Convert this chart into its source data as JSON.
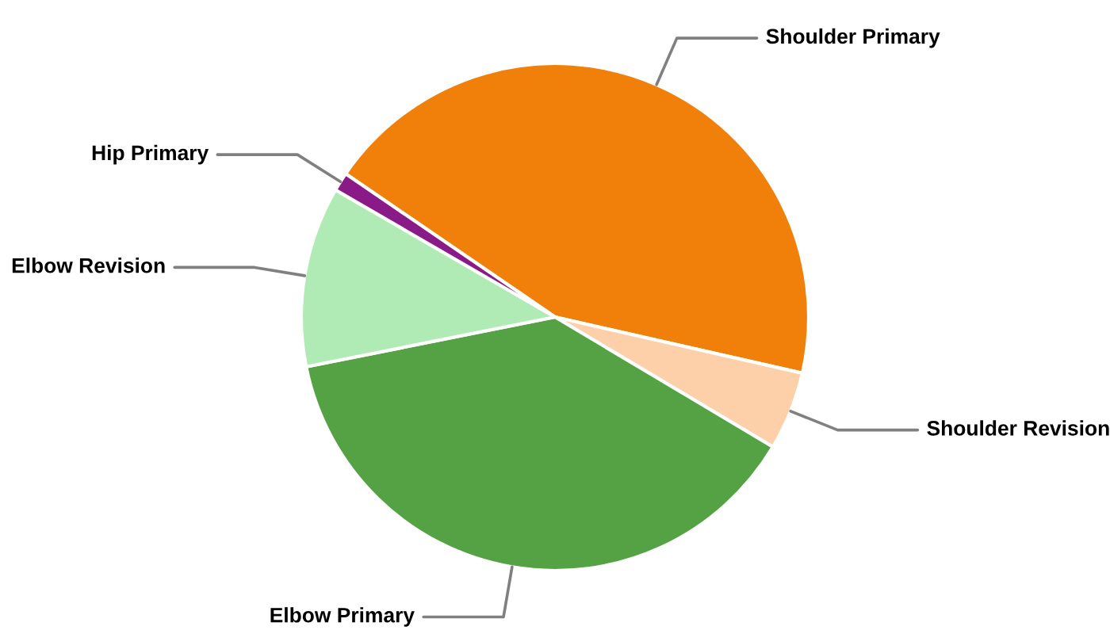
{
  "chart_data": {
    "type": "pie",
    "categories": [
      "Shoulder Primary",
      "Shoulder Revision",
      "Elbow Primary",
      "Elbow Revision",
      "Hip Primary"
    ],
    "values": [
      44,
      5,
      38.3,
      11.5,
      1.2
    ],
    "colors": [
      "#f0800a",
      "#fdd0aa",
      "#55a245",
      "#b0eab4",
      "#8b1a89"
    ],
    "legend": false
  }
}
